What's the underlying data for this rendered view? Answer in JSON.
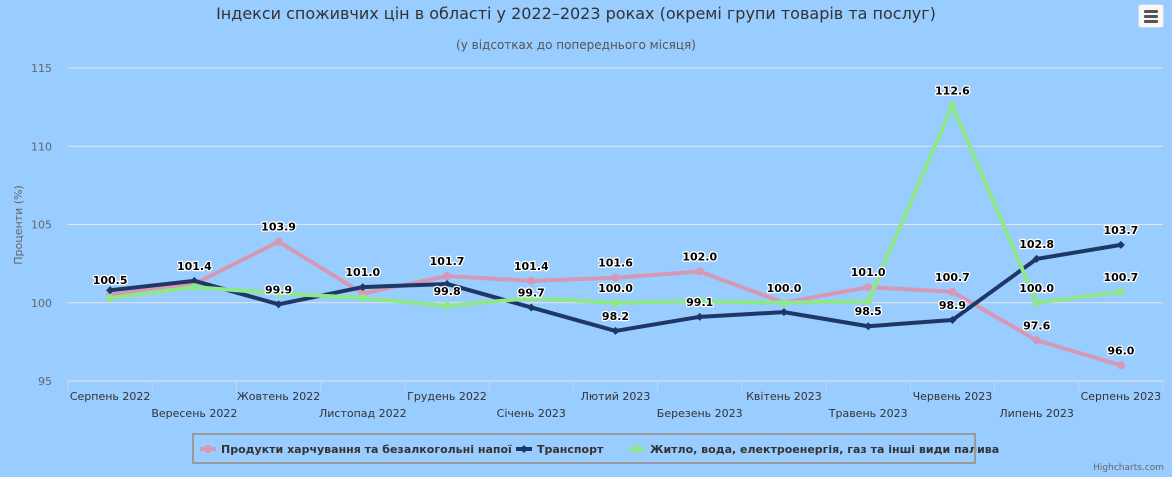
{
  "chart_data": {
    "type": "line",
    "title": "Індекси споживчих цін в області у 2022–2023 роках (окремі групи товарів та послуг)",
    "subtitle": "(у відсотках до попереднього місяця)",
    "ylabel": "Проценти (%)",
    "xlabel": "",
    "ylim": [
      95,
      115
    ],
    "yticks": [
      95,
      100,
      105,
      110,
      115
    ],
    "grid": true,
    "legend_position": "bottom",
    "categories": [
      "Серпень 2022",
      "Вересень 2022",
      "Жовтень 2022",
      "Листопад 2022",
      "Грудень 2022",
      "Січень 2023",
      "Лютий 2023",
      "Березень 2023",
      "Квітень 2023",
      "Травень 2023",
      "Червень 2023",
      "Липень 2023",
      "Серпень 2023"
    ],
    "series": [
      {
        "name": "Продукти харчування та безалкогольні напої",
        "color": "#d599b4",
        "values": [
          100.5,
          101.2,
          103.9,
          100.6,
          101.7,
          101.4,
          101.6,
          102.0,
          100.0,
          101.0,
          100.7,
          97.6,
          96.0
        ],
        "labeled": [
          true,
          false,
          true,
          false,
          true,
          true,
          true,
          true,
          false,
          true,
          true,
          true,
          true
        ]
      },
      {
        "name": "Транспорт",
        "color": "#1f3766",
        "values": [
          100.8,
          101.4,
          99.9,
          101.0,
          101.2,
          99.7,
          98.2,
          99.1,
          99.4,
          98.5,
          98.9,
          102.8,
          103.7
        ],
        "labeled": [
          false,
          true,
          true,
          true,
          false,
          true,
          true,
          true,
          false,
          true,
          true,
          true,
          true
        ]
      },
      {
        "name": "Житло, вода, електроенергія, газ та інші види палива",
        "color": "#8ee88a",
        "values": [
          100.3,
          101.0,
          100.6,
          100.3,
          99.8,
          100.3,
          100.0,
          100.1,
          100.0,
          100.1,
          112.6,
          100.0,
          100.7
        ],
        "labeled": [
          false,
          false,
          false,
          false,
          true,
          false,
          true,
          false,
          true,
          false,
          true,
          true,
          true
        ]
      }
    ]
  },
  "credits": "Highcharts.com",
  "menu_icon": "hamburger-icon"
}
